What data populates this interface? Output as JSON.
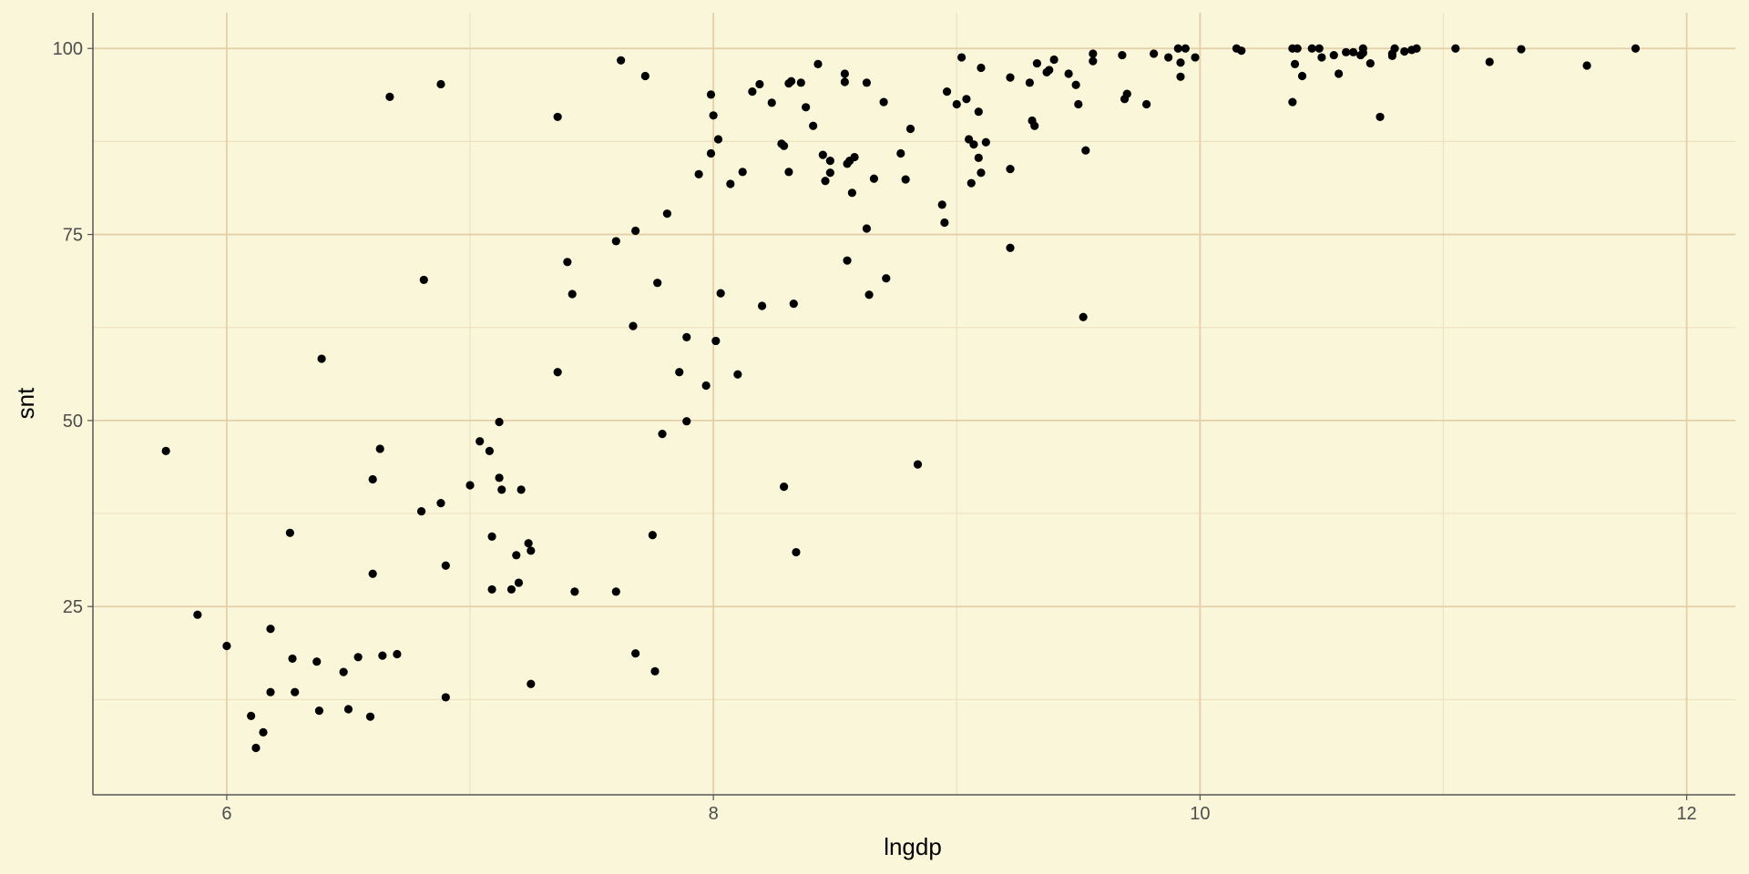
{
  "chart_data": {
    "type": "scatter",
    "title": "",
    "xlabel": "lngdp",
    "ylabel": "snt",
    "xlim": [
      5.45,
      12.2
    ],
    "ylim": [
      -0.3,
      104.8
    ],
    "x_ticks": [
      6,
      8,
      10,
      12
    ],
    "x_tick_labels": [
      "6",
      "8",
      "10",
      "12"
    ],
    "y_ticks": [
      25,
      50,
      75,
      100
    ],
    "y_tick_labels": [
      "25",
      "50",
      "75",
      "100"
    ],
    "x_minor_ticks": [
      7,
      9,
      11
    ],
    "y_minor_ticks": [
      12.5,
      37.5,
      62.5,
      87.5
    ],
    "grid": true,
    "legend": "none",
    "colors": {
      "background": "#f9f6d9",
      "grid_major": "#e5cfa8",
      "grid_minor": "#eee2c1",
      "axis_line": "#555555",
      "point": "#000000"
    },
    "series": [
      {
        "name": "snt",
        "points": [
          [
            5.75,
            45.9
          ],
          [
            5.88,
            23.9
          ],
          [
            6.0,
            19.7
          ],
          [
            6.1,
            10.3
          ],
          [
            6.12,
            6.0
          ],
          [
            6.15,
            8.1
          ],
          [
            6.18,
            22.0
          ],
          [
            6.18,
            13.5
          ],
          [
            6.26,
            34.9
          ],
          [
            6.27,
            18.0
          ],
          [
            6.28,
            13.5
          ],
          [
            6.37,
            17.6
          ],
          [
            6.38,
            11.0
          ],
          [
            6.39,
            58.3
          ],
          [
            6.48,
            16.2
          ],
          [
            6.5,
            11.2
          ],
          [
            6.54,
            18.2
          ],
          [
            6.59,
            10.2
          ],
          [
            6.6,
            29.4
          ],
          [
            6.6,
            42.1
          ],
          [
            6.63,
            46.2
          ],
          [
            6.64,
            18.4
          ],
          [
            6.67,
            93.5
          ],
          [
            6.7,
            18.6
          ],
          [
            6.8,
            37.8
          ],
          [
            6.81,
            68.9
          ],
          [
            6.88,
            95.2
          ],
          [
            6.88,
            38.9
          ],
          [
            6.9,
            30.5
          ],
          [
            6.9,
            12.8
          ],
          [
            7.0,
            41.3
          ],
          [
            7.04,
            47.2
          ],
          [
            7.08,
            45.9
          ],
          [
            7.09,
            34.4
          ],
          [
            7.09,
            27.3
          ],
          [
            7.12,
            49.8
          ],
          [
            7.12,
            42.3
          ],
          [
            7.13,
            40.7
          ],
          [
            7.17,
            27.3
          ],
          [
            7.19,
            31.9
          ],
          [
            7.2,
            28.2
          ],
          [
            7.21,
            40.7
          ],
          [
            7.24,
            33.5
          ],
          [
            7.25,
            32.5
          ],
          [
            7.25,
            14.6
          ],
          [
            7.36,
            90.8
          ],
          [
            7.36,
            56.5
          ],
          [
            7.4,
            71.3
          ],
          [
            7.42,
            67.0
          ],
          [
            7.43,
            27.0
          ],
          [
            7.6,
            74.1
          ],
          [
            7.6,
            27.0
          ],
          [
            7.62,
            98.4
          ],
          [
            7.67,
            62.7
          ],
          [
            7.68,
            75.5
          ],
          [
            7.68,
            18.7
          ],
          [
            7.72,
            96.3
          ],
          [
            7.75,
            34.6
          ],
          [
            7.76,
            16.3
          ],
          [
            7.77,
            68.5
          ],
          [
            7.79,
            48.2
          ],
          [
            7.81,
            77.8
          ],
          [
            7.86,
            56.5
          ],
          [
            7.89,
            61.2
          ],
          [
            7.89,
            49.9
          ],
          [
            7.94,
            83.1
          ],
          [
            7.97,
            54.7
          ],
          [
            7.99,
            93.8
          ],
          [
            7.99,
            85.9
          ],
          [
            8.0,
            91.0
          ],
          [
            8.01,
            60.7
          ],
          [
            8.02,
            87.8
          ],
          [
            8.03,
            67.1
          ],
          [
            8.07,
            81.8
          ],
          [
            8.1,
            56.2
          ],
          [
            8.12,
            83.4
          ],
          [
            8.16,
            94.2
          ],
          [
            8.19,
            95.2
          ],
          [
            8.2,
            65.4
          ],
          [
            8.24,
            92.7
          ],
          [
            8.28,
            87.2
          ],
          [
            8.29,
            86.9
          ],
          [
            8.29,
            41.1
          ],
          [
            8.31,
            95.3
          ],
          [
            8.31,
            83.4
          ],
          [
            8.32,
            95.6
          ],
          [
            8.33,
            65.7
          ],
          [
            8.34,
            32.3
          ],
          [
            8.36,
            95.4
          ],
          [
            8.38,
            92.1
          ],
          [
            8.41,
            89.6
          ],
          [
            8.43,
            97.9
          ],
          [
            8.45,
            85.7
          ],
          [
            8.46,
            82.2
          ],
          [
            8.48,
            84.9
          ],
          [
            8.48,
            83.3
          ],
          [
            8.54,
            96.6
          ],
          [
            8.54,
            95.5
          ],
          [
            8.55,
            84.5
          ],
          [
            8.55,
            71.5
          ],
          [
            8.56,
            84.9
          ],
          [
            8.57,
            80.6
          ],
          [
            8.58,
            85.4
          ],
          [
            8.63,
            95.4
          ],
          [
            8.63,
            75.8
          ],
          [
            8.64,
            66.9
          ],
          [
            8.66,
            82.5
          ],
          [
            8.7,
            92.8
          ],
          [
            8.71,
            69.1
          ],
          [
            8.77,
            85.9
          ],
          [
            8.79,
            82.4
          ],
          [
            8.81,
            89.2
          ],
          [
            8.84,
            44.1
          ],
          [
            8.94,
            79.0
          ],
          [
            8.95,
            76.6
          ],
          [
            8.96,
            94.2
          ],
          [
            9.0,
            92.5
          ],
          [
            9.02,
            98.8
          ],
          [
            9.04,
            93.2
          ],
          [
            9.05,
            87.8
          ],
          [
            9.06,
            81.9
          ],
          [
            9.07,
            87.1
          ],
          [
            9.09,
            85.3
          ],
          [
            9.09,
            91.5
          ],
          [
            9.1,
            83.3
          ],
          [
            9.1,
            97.4
          ],
          [
            9.12,
            87.4
          ],
          [
            9.22,
            96.1
          ],
          [
            9.22,
            83.8
          ],
          [
            9.22,
            73.2
          ],
          [
            9.3,
            95.4
          ],
          [
            9.31,
            90.3
          ],
          [
            9.32,
            89.6
          ],
          [
            9.33,
            98.0
          ],
          [
            9.37,
            96.8
          ],
          [
            9.38,
            97.1
          ],
          [
            9.4,
            98.5
          ],
          [
            9.46,
            96.6
          ],
          [
            9.49,
            95.1
          ],
          [
            9.5,
            92.5
          ],
          [
            9.52,
            63.9
          ],
          [
            9.53,
            86.3
          ],
          [
            9.56,
            98.3
          ],
          [
            9.56,
            99.3
          ],
          [
            9.68,
            99.1
          ],
          [
            9.69,
            93.2
          ],
          [
            9.7,
            93.9
          ],
          [
            9.78,
            92.5
          ],
          [
            9.81,
            99.3
          ],
          [
            9.87,
            98.8
          ],
          [
            9.91,
            100.0
          ],
          [
            9.92,
            98.1
          ],
          [
            9.92,
            96.2
          ],
          [
            9.94,
            100.0
          ],
          [
            9.98,
            98.8
          ],
          [
            10.15,
            100.0
          ],
          [
            10.17,
            99.7
          ],
          [
            10.38,
            100.0
          ],
          [
            10.38,
            92.8
          ],
          [
            10.39,
            97.9
          ],
          [
            10.4,
            100.0
          ],
          [
            10.42,
            96.3
          ],
          [
            10.46,
            100.0
          ],
          [
            10.49,
            100.0
          ],
          [
            10.5,
            98.8
          ],
          [
            10.55,
            99.1
          ],
          [
            10.57,
            96.6
          ],
          [
            10.6,
            99.5
          ],
          [
            10.63,
            99.5
          ],
          [
            10.66,
            99.1
          ],
          [
            10.67,
            99.4
          ],
          [
            10.67,
            100.0
          ],
          [
            10.7,
            98.0
          ],
          [
            10.74,
            90.8
          ],
          [
            10.79,
            99.0
          ],
          [
            10.79,
            99.3
          ],
          [
            10.8,
            100.0
          ],
          [
            10.84,
            99.6
          ],
          [
            10.87,
            99.8
          ],
          [
            10.89,
            100.0
          ],
          [
            11.05,
            100.0
          ],
          [
            11.19,
            98.2
          ],
          [
            11.32,
            99.9
          ],
          [
            11.59,
            97.7
          ],
          [
            11.79,
            100.0
          ]
        ]
      }
    ]
  }
}
